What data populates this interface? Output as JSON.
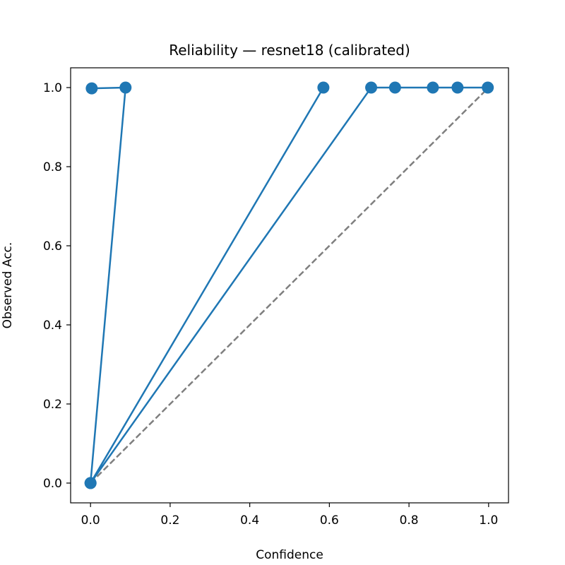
{
  "chart_data": {
    "type": "line",
    "title": "Reliability — resnet18 (calibrated)",
    "xlabel": "Confidence",
    "ylabel": "Observed Acc.",
    "xlim": [
      -0.05,
      1.05
    ],
    "ylim": [
      -0.05,
      1.05
    ],
    "xticks": [
      "0.0",
      "0.2",
      "0.4",
      "0.6",
      "0.8",
      "1.0"
    ],
    "yticks": [
      "0.0",
      "0.2",
      "0.4",
      "0.6",
      "0.8",
      "1.0"
    ],
    "grid": false,
    "legend": "none",
    "series": [
      {
        "color": "#1f77b4",
        "marker": "circle",
        "x": [
          0.003,
          0.088,
          0.0,
          0.585,
          0.0,
          0.705,
          0.765,
          0.86,
          0.922,
          0.998
        ],
        "y": [
          0.998,
          1.0,
          0.0,
          1.0,
          0.0,
          1.0,
          1.0,
          1.0,
          1.0,
          1.0
        ]
      }
    ],
    "reference_line": {
      "style": "dashed",
      "color": "#7f7f7f",
      "x": [
        0.0,
        1.0
      ],
      "y": [
        0.0,
        1.0
      ]
    }
  }
}
